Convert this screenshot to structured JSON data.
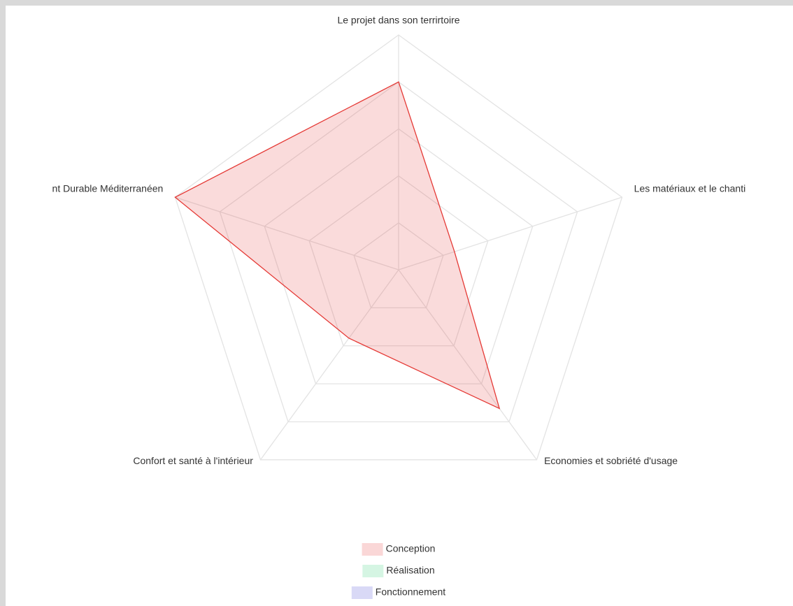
{
  "chart_data": {
    "type": "radar",
    "categories": [
      "Le projet dans son terrirtoire",
      "Les matériaux et le chanti",
      "Economies et sobriété d'usage",
      "Confort et santé à l'intérieur",
      "nt Durable Méditerranéen"
    ],
    "series": [
      {
        "name": "Conception",
        "color": "#e53935",
        "values": [
          80,
          25,
          73,
          36,
          100
        ]
      },
      {
        "name": "Réalisation",
        "color": "#2ecc71",
        "values": [
          null,
          null,
          null,
          null,
          null
        ]
      },
      {
        "name": "Fonctionnement",
        "color": "#3f3fd0",
        "values": [
          null,
          null,
          null,
          null,
          null
        ]
      }
    ],
    "ylim": [
      0,
      100
    ],
    "yticks": [
      0,
      20,
      40,
      60,
      80,
      100
    ],
    "grid": true,
    "legend": "bottom"
  }
}
